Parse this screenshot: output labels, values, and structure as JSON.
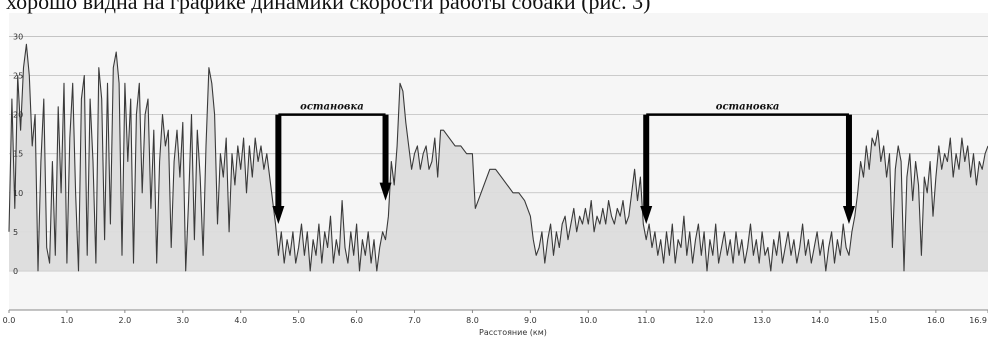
{
  "caption": "хорошо видна на графике динамики скорости работы собаки (рис. 3)",
  "chart_data": {
    "type": "area",
    "title": "",
    "xlabel": "Расстояние (км)",
    "ylabel": "",
    "xlim": [
      0,
      16.9
    ],
    "ylim": [
      -5,
      33
    ],
    "grid": true,
    "x_ticks": [
      "0.0",
      "1.0",
      "2.0",
      "3.0",
      "4.0",
      "5.0",
      "6.0",
      "7.0",
      "8.0",
      "9.0",
      "10.0",
      "11.0",
      "12.0",
      "13.0",
      "14.0",
      "15.0",
      "16.0",
      "16.9"
    ],
    "y_ticks": [
      "0",
      "5",
      "10",
      "15",
      "20",
      "25",
      "30"
    ],
    "series": [
      {
        "values": [
          [
            0.0,
            5
          ],
          [
            0.05,
            22
          ],
          [
            0.1,
            8
          ],
          [
            0.15,
            25
          ],
          [
            0.2,
            18
          ],
          [
            0.25,
            26
          ],
          [
            0.3,
            29
          ],
          [
            0.35,
            25
          ],
          [
            0.4,
            16
          ],
          [
            0.45,
            20
          ],
          [
            0.5,
            0
          ],
          [
            0.55,
            14
          ],
          [
            0.6,
            22
          ],
          [
            0.65,
            3
          ],
          [
            0.7,
            1
          ],
          [
            0.75,
            14
          ],
          [
            0.8,
            2
          ],
          [
            0.85,
            21
          ],
          [
            0.9,
            10
          ],
          [
            0.95,
            24
          ],
          [
            1.0,
            1
          ],
          [
            1.05,
            17
          ],
          [
            1.1,
            24
          ],
          [
            1.15,
            10
          ],
          [
            1.2,
            0
          ],
          [
            1.25,
            22
          ],
          [
            1.3,
            25
          ],
          [
            1.35,
            2
          ],
          [
            1.4,
            22
          ],
          [
            1.45,
            14
          ],
          [
            1.5,
            1
          ],
          [
            1.55,
            26
          ],
          [
            1.6,
            22
          ],
          [
            1.65,
            4
          ],
          [
            1.7,
            24
          ],
          [
            1.75,
            6
          ],
          [
            1.8,
            26
          ],
          [
            1.85,
            28
          ],
          [
            1.9,
            24
          ],
          [
            1.95,
            2
          ],
          [
            2.0,
            24
          ],
          [
            2.05,
            14
          ],
          [
            2.1,
            22
          ],
          [
            2.15,
            1
          ],
          [
            2.2,
            20
          ],
          [
            2.25,
            24
          ],
          [
            2.3,
            10
          ],
          [
            2.35,
            20
          ],
          [
            2.4,
            22
          ],
          [
            2.45,
            8
          ],
          [
            2.5,
            18
          ],
          [
            2.55,
            1
          ],
          [
            2.6,
            14
          ],
          [
            2.65,
            20
          ],
          [
            2.7,
            16
          ],
          [
            2.75,
            18
          ],
          [
            2.8,
            3
          ],
          [
            2.85,
            14
          ],
          [
            2.9,
            18
          ],
          [
            2.95,
            12
          ],
          [
            3.0,
            19
          ],
          [
            3.05,
            0
          ],
          [
            3.1,
            9
          ],
          [
            3.15,
            20
          ],
          [
            3.2,
            4
          ],
          [
            3.25,
            18
          ],
          [
            3.3,
            12
          ],
          [
            3.35,
            2
          ],
          [
            3.4,
            16
          ],
          [
            3.45,
            26
          ],
          [
            3.5,
            24
          ],
          [
            3.55,
            20
          ],
          [
            3.6,
            6
          ],
          [
            3.65,
            15
          ],
          [
            3.7,
            12
          ],
          [
            3.75,
            17
          ],
          [
            3.8,
            5
          ],
          [
            3.85,
            15
          ],
          [
            3.9,
            11
          ],
          [
            3.95,
            16
          ],
          [
            4.0,
            13
          ],
          [
            4.05,
            17
          ],
          [
            4.1,
            10
          ],
          [
            4.15,
            16
          ],
          [
            4.2,
            12
          ],
          [
            4.25,
            17
          ],
          [
            4.3,
            14
          ],
          [
            4.35,
            16
          ],
          [
            4.4,
            13
          ],
          [
            4.45,
            15
          ],
          [
            4.5,
            12
          ],
          [
            4.55,
            9
          ],
          [
            4.6,
            6
          ],
          [
            4.65,
            2
          ],
          [
            4.7,
            5
          ],
          [
            4.75,
            1
          ],
          [
            4.8,
            4
          ],
          [
            4.85,
            2
          ],
          [
            4.9,
            5
          ],
          [
            4.95,
            1
          ],
          [
            5.0,
            3
          ],
          [
            5.05,
            6
          ],
          [
            5.1,
            2
          ],
          [
            5.15,
            5
          ],
          [
            5.2,
            0
          ],
          [
            5.25,
            4
          ],
          [
            5.3,
            2
          ],
          [
            5.35,
            6
          ],
          [
            5.4,
            1
          ],
          [
            5.45,
            5
          ],
          [
            5.5,
            3
          ],
          [
            5.55,
            7
          ],
          [
            5.6,
            1
          ],
          [
            5.65,
            4
          ],
          [
            5.7,
            2
          ],
          [
            5.75,
            9
          ],
          [
            5.8,
            3
          ],
          [
            5.85,
            1
          ],
          [
            5.9,
            5
          ],
          [
            5.95,
            2
          ],
          [
            6.0,
            6
          ],
          [
            6.05,
            0
          ],
          [
            6.1,
            4
          ],
          [
            6.15,
            2
          ],
          [
            6.2,
            5
          ],
          [
            6.25,
            1
          ],
          [
            6.3,
            4
          ],
          [
            6.35,
            0
          ],
          [
            6.4,
            3
          ],
          [
            6.45,
            5
          ],
          [
            6.5,
            4
          ],
          [
            6.55,
            7
          ],
          [
            6.6,
            14
          ],
          [
            6.65,
            11
          ],
          [
            6.7,
            16
          ],
          [
            6.75,
            24
          ],
          [
            6.8,
            23
          ],
          [
            6.85,
            19
          ],
          [
            6.9,
            16
          ],
          [
            6.95,
            13
          ],
          [
            7.0,
            15
          ],
          [
            7.05,
            16
          ],
          [
            7.1,
            13
          ],
          [
            7.15,
            15
          ],
          [
            7.2,
            16
          ],
          [
            7.25,
            13
          ],
          [
            7.3,
            14
          ],
          [
            7.35,
            17
          ],
          [
            7.4,
            12
          ],
          [
            7.45,
            18
          ],
          [
            7.5,
            18
          ],
          [
            7.6,
            17
          ],
          [
            7.7,
            16
          ],
          [
            7.8,
            16
          ],
          [
            7.9,
            15
          ],
          [
            8.0,
            15
          ],
          [
            8.05,
            8
          ],
          [
            8.1,
            9
          ],
          [
            8.2,
            11
          ],
          [
            8.3,
            13
          ],
          [
            8.4,
            13
          ],
          [
            8.5,
            12
          ],
          [
            8.6,
            11
          ],
          [
            8.7,
            10
          ],
          [
            8.8,
            10
          ],
          [
            8.9,
            9
          ],
          [
            9.0,
            7
          ],
          [
            9.05,
            4
          ],
          [
            9.1,
            2
          ],
          [
            9.15,
            3
          ],
          [
            9.2,
            5
          ],
          [
            9.25,
            1
          ],
          [
            9.3,
            4
          ],
          [
            9.35,
            6
          ],
          [
            9.4,
            2
          ],
          [
            9.45,
            5
          ],
          [
            9.5,
            3
          ],
          [
            9.55,
            6
          ],
          [
            9.6,
            7
          ],
          [
            9.65,
            4
          ],
          [
            9.7,
            6
          ],
          [
            9.75,
            8
          ],
          [
            9.8,
            5
          ],
          [
            9.85,
            7
          ],
          [
            9.9,
            6
          ],
          [
            9.95,
            8
          ],
          [
            10.0,
            6
          ],
          [
            10.05,
            9
          ],
          [
            10.1,
            5
          ],
          [
            10.15,
            7
          ],
          [
            10.2,
            6
          ],
          [
            10.25,
            8
          ],
          [
            10.3,
            6
          ],
          [
            10.35,
            9
          ],
          [
            10.4,
            7
          ],
          [
            10.45,
            6
          ],
          [
            10.5,
            8
          ],
          [
            10.55,
            7
          ],
          [
            10.6,
            9
          ],
          [
            10.65,
            6
          ],
          [
            10.7,
            7
          ],
          [
            10.75,
            10
          ],
          [
            10.8,
            13
          ],
          [
            10.85,
            9
          ],
          [
            10.9,
            12
          ],
          [
            10.95,
            6
          ],
          [
            11.0,
            4
          ],
          [
            11.05,
            6
          ],
          [
            11.1,
            3
          ],
          [
            11.15,
            5
          ],
          [
            11.2,
            2
          ],
          [
            11.25,
            4
          ],
          [
            11.3,
            1
          ],
          [
            11.35,
            5
          ],
          [
            11.4,
            2
          ],
          [
            11.45,
            6
          ],
          [
            11.5,
            1
          ],
          [
            11.55,
            4
          ],
          [
            11.6,
            3
          ],
          [
            11.65,
            7
          ],
          [
            11.7,
            2
          ],
          [
            11.75,
            5
          ],
          [
            11.8,
            1
          ],
          [
            11.85,
            4
          ],
          [
            11.9,
            6
          ],
          [
            11.95,
            2
          ],
          [
            12.0,
            5
          ],
          [
            12.05,
            0
          ],
          [
            12.1,
            4
          ],
          [
            12.15,
            2
          ],
          [
            12.2,
            6
          ],
          [
            12.25,
            1
          ],
          [
            12.3,
            3
          ],
          [
            12.35,
            5
          ],
          [
            12.4,
            2
          ],
          [
            12.45,
            4
          ],
          [
            12.5,
            1
          ],
          [
            12.55,
            5
          ],
          [
            12.6,
            2
          ],
          [
            12.65,
            4
          ],
          [
            12.7,
            1
          ],
          [
            12.75,
            3
          ],
          [
            12.8,
            6
          ],
          [
            12.85,
            2
          ],
          [
            12.9,
            4
          ],
          [
            12.95,
            1
          ],
          [
            13.0,
            5
          ],
          [
            13.05,
            2
          ],
          [
            13.1,
            3
          ],
          [
            13.15,
            0
          ],
          [
            13.2,
            4
          ],
          [
            13.25,
            2
          ],
          [
            13.3,
            5
          ],
          [
            13.35,
            1
          ],
          [
            13.4,
            3
          ],
          [
            13.45,
            5
          ],
          [
            13.5,
            2
          ],
          [
            13.55,
            4
          ],
          [
            13.6,
            1
          ],
          [
            13.65,
            3
          ],
          [
            13.7,
            6
          ],
          [
            13.75,
            2
          ],
          [
            13.8,
            4
          ],
          [
            13.85,
            1
          ],
          [
            13.9,
            3
          ],
          [
            13.95,
            5
          ],
          [
            14.0,
            2
          ],
          [
            14.05,
            4
          ],
          [
            14.1,
            0
          ],
          [
            14.15,
            3
          ],
          [
            14.2,
            5
          ],
          [
            14.25,
            1
          ],
          [
            14.3,
            4
          ],
          [
            14.35,
            2
          ],
          [
            14.4,
            6
          ],
          [
            14.45,
            3
          ],
          [
            14.5,
            2
          ],
          [
            14.55,
            5
          ],
          [
            14.6,
            7
          ],
          [
            14.65,
            10
          ],
          [
            14.7,
            14
          ],
          [
            14.75,
            12
          ],
          [
            14.8,
            16
          ],
          [
            14.85,
            13
          ],
          [
            14.9,
            17
          ],
          [
            14.95,
            16
          ],
          [
            15.0,
            18
          ],
          [
            15.05,
            14
          ],
          [
            15.1,
            16
          ],
          [
            15.15,
            12
          ],
          [
            15.2,
            15
          ],
          [
            15.25,
            3
          ],
          [
            15.3,
            13
          ],
          [
            15.35,
            16
          ],
          [
            15.4,
            14
          ],
          [
            15.45,
            0
          ],
          [
            15.5,
            12
          ],
          [
            15.55,
            15
          ],
          [
            15.6,
            9
          ],
          [
            15.65,
            14
          ],
          [
            15.7,
            11
          ],
          [
            15.75,
            2
          ],
          [
            15.8,
            12
          ],
          [
            15.85,
            10
          ],
          [
            15.9,
            14
          ],
          [
            15.95,
            7
          ],
          [
            16.0,
            12
          ],
          [
            16.05,
            16
          ],
          [
            16.1,
            13
          ],
          [
            16.15,
            15
          ],
          [
            16.2,
            14
          ],
          [
            16.25,
            17
          ],
          [
            16.3,
            12
          ],
          [
            16.35,
            15
          ],
          [
            16.4,
            13
          ],
          [
            16.45,
            17
          ],
          [
            16.5,
            14
          ],
          [
            16.55,
            16
          ],
          [
            16.6,
            12
          ],
          [
            16.65,
            15
          ],
          [
            16.7,
            11
          ],
          [
            16.75,
            14
          ],
          [
            16.8,
            13
          ],
          [
            16.85,
            15
          ],
          [
            16.9,
            16
          ]
        ]
      }
    ],
    "annotations": [
      {
        "text": "остановка",
        "x_start": 4.65,
        "x_end": 6.5,
        "arrow_to_y": [
          6,
          9
        ]
      },
      {
        "text": "остановка",
        "x_start": 11.0,
        "x_end": 14.5,
        "arrow_to_y": [
          6,
          6
        ]
      }
    ]
  }
}
